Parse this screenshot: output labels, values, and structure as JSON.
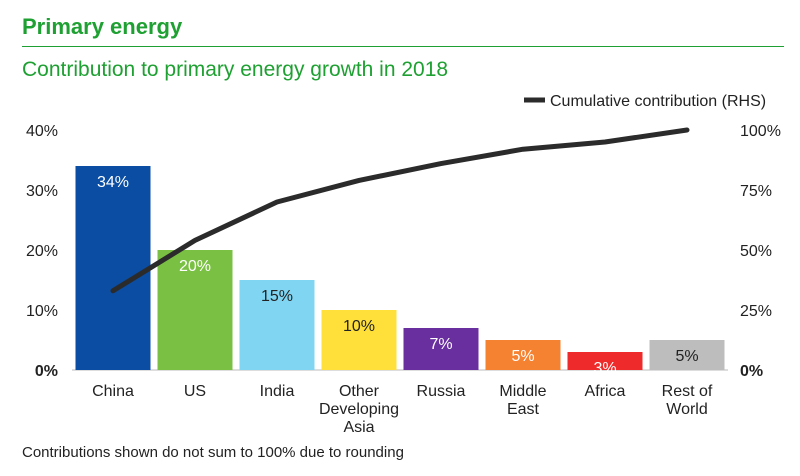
{
  "header": {
    "title": "Primary energy"
  },
  "footnote": "Contributions shown do not sum to 100% due to rounding",
  "chart_data": {
    "type": "bar",
    "title": "Contribution to primary energy growth in 2018",
    "categories": [
      [
        "China"
      ],
      [
        "US"
      ],
      [
        "India"
      ],
      [
        "Other",
        "Developing",
        "Asia"
      ],
      [
        "Russia"
      ],
      [
        "Middle",
        "East"
      ],
      [
        "Africa"
      ],
      [
        "Rest of",
        "World"
      ]
    ],
    "values": [
      34,
      20,
      15,
      10,
      7,
      5,
      3,
      5
    ],
    "value_labels": [
      "34%",
      "20%",
      "15%",
      "10%",
      "7%",
      "5%",
      "3%",
      "5%"
    ],
    "bar_colors": [
      "#0a4da2",
      "#7ac143",
      "#7fd5f2",
      "#ffe03a",
      "#6a2f9e",
      "#f58231",
      "#ee2a2a",
      "#bdbdbd"
    ],
    "label_colors": [
      "#ffffff",
      "#ffffff",
      "#222222",
      "#222222",
      "#ffffff",
      "#ffffff",
      "#ffffff",
      "#222222"
    ],
    "ylim_left": [
      0,
      40
    ],
    "yticks_left": [
      "0%",
      "10%",
      "20%",
      "30%",
      "40%"
    ],
    "ylim_right": [
      0,
      100
    ],
    "yticks_right": [
      "0%",
      "25%",
      "50%",
      "75%",
      "100%"
    ],
    "line_series": {
      "name": "Cumulative contribution (RHS)",
      "color": "#2b2b2b",
      "values": [
        33,
        54,
        70,
        79,
        86,
        92,
        95,
        100
      ]
    },
    "legend_position": "top-right",
    "grid": false
  }
}
